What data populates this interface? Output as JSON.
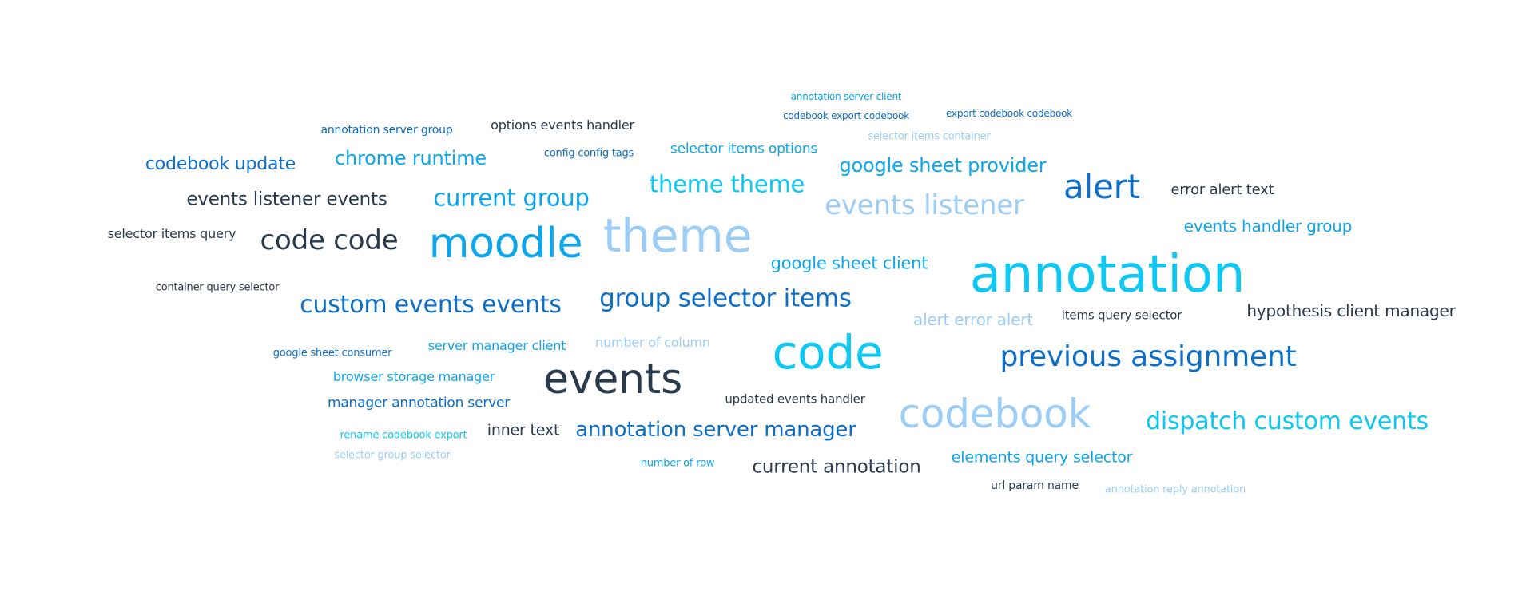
{
  "palette": {
    "navy": "#2a3a4d",
    "blue": "#0d6ec8",
    "sky": "#0ba6ec",
    "cyan": "#0cc8f2",
    "light": "#9ccdf7"
  },
  "words": [
    {
      "text": "annotation server client",
      "color": "sky"
    },
    {
      "text": "export codebook codebook",
      "color": "blue"
    },
    {
      "text": "codebook export codebook",
      "color": "blue"
    },
    {
      "text": "annotation server group",
      "color": "blue"
    },
    {
      "text": "options events handler",
      "color": "navy"
    },
    {
      "text": "selector items container",
      "color": "light"
    },
    {
      "text": "selector items options",
      "color": "sky"
    },
    {
      "text": "config config tags",
      "color": "blue"
    },
    {
      "text": "chrome runtime",
      "color": "sky"
    },
    {
      "text": "codebook update",
      "color": "blue"
    },
    {
      "text": "google sheet provider",
      "color": "sky"
    },
    {
      "text": "theme theme",
      "color": "cyan"
    },
    {
      "text": "alert",
      "color": "blue"
    },
    {
      "text": "error alert text",
      "color": "navy"
    },
    {
      "text": "events listener events",
      "color": "navy"
    },
    {
      "text": "current group",
      "color": "sky"
    },
    {
      "text": "events listener",
      "color": "light"
    },
    {
      "text": "events handler group",
      "color": "sky"
    },
    {
      "text": "selector items query",
      "color": "navy"
    },
    {
      "text": "code code",
      "color": "navy"
    },
    {
      "text": "moodle",
      "color": "sky"
    },
    {
      "text": "theme",
      "color": "light"
    },
    {
      "text": "google sheet client",
      "color": "sky"
    },
    {
      "text": "annotation",
      "color": "cyan"
    },
    {
      "text": "container query selector",
      "color": "navy"
    },
    {
      "text": "custom events events",
      "color": "blue"
    },
    {
      "text": "group selector items",
      "color": "blue"
    },
    {
      "text": "alert error alert",
      "color": "light"
    },
    {
      "text": "items query selector",
      "color": "navy"
    },
    {
      "text": "hypothesis client manager",
      "color": "navy"
    },
    {
      "text": "google sheet consumer",
      "color": "blue"
    },
    {
      "text": "server manager client",
      "color": "sky"
    },
    {
      "text": "number of column",
      "color": "light"
    },
    {
      "text": "code",
      "color": "cyan"
    },
    {
      "text": "previous assignment",
      "color": "blue"
    },
    {
      "text": "browser storage manager",
      "color": "sky"
    },
    {
      "text": "events",
      "color": "navy"
    },
    {
      "text": "manager annotation server",
      "color": "blue"
    },
    {
      "text": "updated events handler",
      "color": "navy"
    },
    {
      "text": "codebook",
      "color": "light"
    },
    {
      "text": "dispatch custom events",
      "color": "cyan"
    },
    {
      "text": "rename codebook export",
      "color": "cyan"
    },
    {
      "text": "inner text",
      "color": "navy"
    },
    {
      "text": "annotation server manager",
      "color": "blue"
    },
    {
      "text": "selector group selector",
      "color": "light"
    },
    {
      "text": "number of row",
      "color": "sky"
    },
    {
      "text": "current annotation",
      "color": "navy"
    },
    {
      "text": "elements query selector",
      "color": "sky"
    },
    {
      "text": "url param name",
      "color": "navy"
    },
    {
      "text": "annotation reply annotation",
      "color": "light"
    }
  ]
}
